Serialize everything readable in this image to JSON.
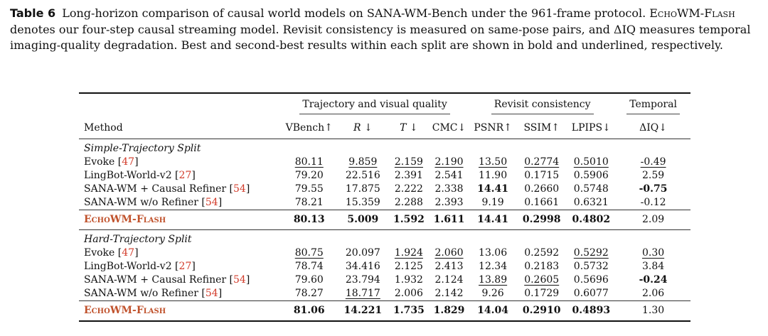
{
  "caption": {
    "label": "Table 6",
    "part1": "Long-horizon comparison of causal world models on SANA-WM-Bench under the 961-frame protocol.",
    "model_name": "EchoWM-Flash",
    "part2": "denotes our four-step causal streaming model. Revisit consistency is measured on same-pose pairs, and ΔIQ measures temporal imaging-quality degradation. Best and second-best results within each split are shown in bold and underlined, respectively."
  },
  "table": {
    "groups": {
      "traj": "Trajectory and visual quality",
      "revisit": "Revisit consistency",
      "temporal": "Temporal"
    },
    "columns": [
      "Method",
      "VBench↑",
      "R ↓",
      "T ↓",
      "CMC↓",
      "PSNR↑",
      "SSIM↑",
      "LPIPS↓",
      "ΔIQ↓"
    ],
    "splits": [
      {
        "title": "Simple-Trajectory Split",
        "rows": [
          {
            "name": "Evoke",
            "ref": "47",
            "cells": [
              "80.11",
              "9.859",
              "2.159",
              "2.190",
              "13.50",
              "0.2774",
              "0.5010",
              "-0.49"
            ],
            "fmt": [
              "u",
              "u",
              "u",
              "u",
              "u",
              "u",
              "u",
              "u"
            ]
          },
          {
            "name": "LingBot-World-v2",
            "ref": "27",
            "cells": [
              "79.20",
              "22.516",
              "2.391",
              "2.541",
              "11.90",
              "0.1715",
              "0.5906",
              "2.59"
            ],
            "fmt": [
              "",
              "",
              "",
              "",
              "",
              "",
              "",
              ""
            ]
          },
          {
            "name": "SANA-WM + Causal Refiner",
            "ref": "54",
            "cells": [
              "79.55",
              "17.875",
              "2.222",
              "2.338",
              "14.41",
              "0.2660",
              "0.5748",
              "-0.75"
            ],
            "fmt": [
              "",
              "",
              "",
              "",
              "b",
              "",
              "",
              "b"
            ]
          },
          {
            "name": "SANA-WM w/o Refiner",
            "ref": "54",
            "cells": [
              "78.21",
              "15.359",
              "2.288",
              "2.393",
              "9.19",
              "0.1661",
              "0.6321",
              "-0.12"
            ],
            "fmt": [
              "",
              "",
              "",
              "",
              "",
              "",
              "",
              ""
            ]
          }
        ],
        "ours": {
          "name": "EchoWM-Flash",
          "cells": [
            "80.13",
            "5.009",
            "1.592",
            "1.611",
            "14.41",
            "0.2998",
            "0.4802",
            "2.09"
          ],
          "fmt": [
            "b",
            "b",
            "b",
            "b",
            "b",
            "b",
            "b",
            ""
          ]
        }
      },
      {
        "title": "Hard-Trajectory Split",
        "rows": [
          {
            "name": "Evoke",
            "ref": "47",
            "cells": [
              "80.75",
              "20.097",
              "1.924",
              "2.060",
              "13.06",
              "0.2592",
              "0.5292",
              "0.30"
            ],
            "fmt": [
              "u",
              "",
              "u",
              "u",
              "",
              "",
              "u",
              "u"
            ]
          },
          {
            "name": "LingBot-World-v2",
            "ref": "27",
            "cells": [
              "78.74",
              "34.416",
              "2.125",
              "2.413",
              "12.34",
              "0.2183",
              "0.5732",
              "3.84"
            ],
            "fmt": [
              "",
              "",
              "",
              "",
              "",
              "",
              "",
              ""
            ]
          },
          {
            "name": "SANA-WM + Causal Refiner",
            "ref": "54",
            "cells": [
              "79.60",
              "23.794",
              "1.932",
              "2.124",
              "13.89",
              "0.2605",
              "0.5696",
              "-0.24"
            ],
            "fmt": [
              "",
              "",
              "",
              "",
              "u",
              "u",
              "",
              "b"
            ]
          },
          {
            "name": "SANA-WM w/o Refiner",
            "ref": "54",
            "cells": [
              "78.27",
              "18.717",
              "2.006",
              "2.142",
              "9.26",
              "0.1729",
              "0.6077",
              "2.06"
            ],
            "fmt": [
              "",
              "u",
              "",
              "",
              "",
              "",
              "",
              ""
            ]
          }
        ],
        "ours": {
          "name": "EchoWM-Flash",
          "cells": [
            "81.06",
            "14.221",
            "1.735",
            "1.829",
            "14.04",
            "0.2910",
            "0.4893",
            "1.30"
          ],
          "fmt": [
            "b",
            "b",
            "b",
            "b",
            "b",
            "b",
            "b",
            ""
          ]
        }
      }
    ]
  }
}
